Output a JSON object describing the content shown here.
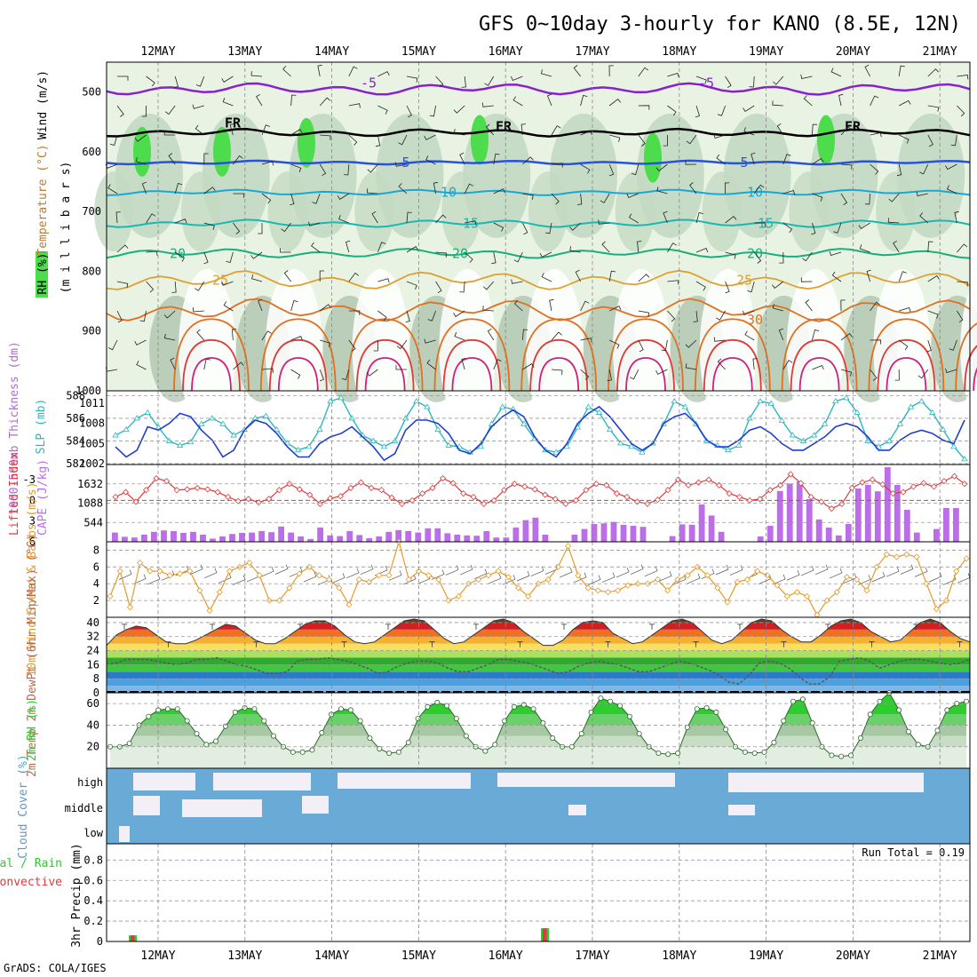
{
  "title": "GFS 0~10day 3-hourly for KANO (8.5E, 12N)",
  "credit": "GrADS: COLA/IGES",
  "colors": {
    "rh_light": "#e8f3e4",
    "rh_mid": "#c3d9c2",
    "rh_dark": "#9db59c",
    "rh_bright": "#4cdc4c",
    "freeze_line": "#000000",
    "temp_5": "#2a52d8",
    "temp_10": "#1aa7d6",
    "temp_15": "#1cb7b0",
    "temp_20": "#1aae7a",
    "temp_25": "#e0a030",
    "temp_30": "#e07020",
    "temp_m5": "#8a1fcf",
    "slp": "#1f3fd0",
    "thickness": "#2ab8c0",
    "lifted": "#e03a3a",
    "cape": "#bb6ee8",
    "wind": "#e79a2a",
    "rh2m": "#2ecc2e",
    "cloud": "#6aaad6",
    "cloud_clear": "#f2f0f6",
    "precip_total": "#2ecc2e",
    "precip_conv": "#e03a3a"
  },
  "chart_data": [
    {
      "id": "upper",
      "type": "heatmap",
      "ylabel_1": "RH (%)",
      "ylabel_2": "Temperature (°C)",
      "ylabel_3": "Wind (m/s)",
      "ylabel_4": "(m i l l i b a r s)",
      "ylim": [
        1000,
        450
      ],
      "yticks": [
        "500",
        "600",
        "700",
        "800",
        "900",
        "1000"
      ],
      "dates": [
        "12MAY",
        "13MAY",
        "14MAY",
        "15MAY",
        "16MAY",
        "17MAY",
        "18MAY",
        "19MAY",
        "20MAY",
        "21MAY"
      ],
      "contour_labels": [
        {
          "text": "-5",
          "series": "temp_m5"
        },
        {
          "text": "-5",
          "series": "temp_m5"
        },
        {
          "text": "FR",
          "series": "freeze_line"
        },
        {
          "text": "FR",
          "series": "freeze_line"
        },
        {
          "text": "FR",
          "series": "freeze_line"
        },
        {
          "text": "5",
          "series": "temp_5"
        },
        {
          "text": "5",
          "series": "temp_5"
        },
        {
          "text": "10",
          "series": "temp_10"
        },
        {
          "text": "10",
          "series": "temp_10"
        },
        {
          "text": "15",
          "series": "temp_15"
        },
        {
          "text": "15",
          "series": "temp_15"
        },
        {
          "text": "20",
          "series": "temp_20"
        },
        {
          "text": "20",
          "series": "temp_20"
        },
        {
          "text": "20",
          "series": "temp_20"
        },
        {
          "text": "25",
          "series": "temp_25"
        },
        {
          "text": "25",
          "series": "temp_25"
        },
        {
          "text": "30",
          "series": "temp_30"
        }
      ],
      "isotherm_pressure": {
        "temp_m5": 495,
        "freeze_line": 568,
        "temp_5": 618,
        "temp_10": 668,
        "temp_15": 720,
        "temp_20": 770,
        "temp_25": 815,
        "temp_30": 865
      }
    },
    {
      "id": "slp_thickness",
      "type": "line",
      "ylabel_left": "1000-500mb Thickness (dm)",
      "ylabel_right": "SLP (mb)",
      "left_ticks": [
        "588",
        "586",
        "584",
        "582"
      ],
      "right_ticks": [
        "1011",
        "1008",
        "1005",
        "1002"
      ],
      "left_ylim": [
        582,
        588.5
      ],
      "right_ylim": [
        1002,
        1013
      ],
      "series": [
        {
          "key": "thickness",
          "values": [
            584.5,
            585.0,
            586.0,
            586.5,
            585.2,
            584.0,
            583.6,
            583.9,
            585.5,
            586.0,
            585.5,
            584.5,
            585.0,
            586.0,
            586.2,
            585.0,
            583.8,
            583.2,
            583.5,
            585.0,
            587.5,
            587.8,
            586.0,
            584.5,
            584.0,
            583.5,
            584.0,
            586.0,
            587.5,
            587.0,
            585.0,
            583.6,
            583.5,
            583.0,
            583.5,
            585.5,
            587.0,
            586.8,
            585.5,
            584.2,
            583.2,
            583.0,
            583.5,
            585.2,
            587.0,
            586.5,
            585.0,
            583.8,
            583.5,
            583.0,
            583.8,
            585.5,
            587.5,
            587.0,
            585.5,
            584.0,
            583.6,
            583.2,
            583.6,
            586.0,
            587.5,
            587.3,
            585.8,
            584.5,
            584.0,
            584.5,
            585.5,
            587.5,
            587.8,
            586.5,
            584.0,
            583.5,
            584.0,
            585.5,
            587.0,
            587.5,
            586.5,
            585.0,
            583.5,
            582.4
          ]
        },
        {
          "key": "slp",
          "values": [
            1004.5,
            1003.0,
            1004.0,
            1007.5,
            1007.0,
            1008.0,
            1009.5,
            1009.0,
            1007.0,
            1005.5,
            1003.0,
            1004.0,
            1007.0,
            1008.5,
            1008.0,
            1006.5,
            1004.5,
            1003.0,
            1003.0,
            1005.0,
            1006.0,
            1006.5,
            1007.5,
            1006.0,
            1004.5,
            1002.5,
            1003.5,
            1007.0,
            1008.5,
            1008.5,
            1008.0,
            1006.5,
            1004.0,
            1003.5,
            1005.0,
            1007.5,
            1009.0,
            1010.0,
            1009.0,
            1006.0,
            1004.0,
            1003.0,
            1005.0,
            1008.0,
            1009.5,
            1010.5,
            1009.0,
            1007.0,
            1005.0,
            1004.0,
            1005.0,
            1008.0,
            1009.0,
            1009.5,
            1008.0,
            1005.5,
            1004.5,
            1004.5,
            1005.5,
            1007.0,
            1007.5,
            1006.5,
            1005.0,
            1004.0,
            1004.0,
            1005.0,
            1006.0,
            1007.5,
            1008.0,
            1007.5,
            1006.0,
            1004.0,
            1004.0,
            1005.5,
            1006.5,
            1007.0,
            1006.5,
            1005.5,
            1005.0,
            1008.5
          ]
        }
      ]
    },
    {
      "id": "lifted_cape",
      "type": "bar",
      "ylabel_left": "Lifted Index",
      "ylabel_right": "CAPE (J/kg)",
      "left_ticks": [
        "-3",
        "0",
        "3",
        "6"
      ],
      "right_ticks": [
        "1632",
        "1088",
        "544"
      ],
      "left_ylim": [
        6,
        -5.2
      ],
      "right_ylim": [
        0,
        2176
      ],
      "series": [
        {
          "key": "lifted",
          "values": [
            -0.5,
            -1.2,
            0.2,
            -1.5,
            -3.2,
            -2.8,
            -1.5,
            -1.6,
            -1.8,
            -1.6,
            -1.2,
            -0.5,
            0.1,
            -0.2,
            0.3,
            -0.2,
            -1.5,
            -2.4,
            -1.6,
            -0.8,
            0.5,
            -0.3,
            -0.6,
            -1.8,
            -2.6,
            -1.8,
            -1.5,
            -0.4,
            0.5,
            0.0,
            -1.0,
            -1.8,
            -3.2,
            -2.5,
            -1.0,
            -0.5,
            0.5,
            0.0,
            -1.5,
            -2.4,
            -2.0,
            -1.6,
            -0.8,
            -0.2,
            0.5,
            0.0,
            -1.5,
            -2.4,
            -2.2,
            -1.0,
            -0.5,
            0.2,
            0.5,
            -0.1,
            -1.5,
            -3.0,
            -2.2,
            -2.6,
            -3.0,
            -2.2,
            -1.0,
            -0.5,
            0.0,
            -0.2,
            -1.5,
            -2.2,
            -3.8,
            -2.5,
            -0.5,
            0.2,
            1.2,
            0.5,
            -1.8,
            -2.6,
            -3.0,
            -2.3,
            -1.0,
            -1.2,
            -2.0,
            -2.5,
            -2.0,
            -2.8,
            -3.5,
            -2.4
          ]
        },
        {
          "key": "cape",
          "values": [
            260,
            140,
            120,
            200,
            280,
            320,
            300,
            250,
            280,
            200,
            90,
            150,
            220,
            250,
            260,
            300,
            270,
            430,
            260,
            150,
            80,
            400,
            180,
            160,
            300,
            190,
            100,
            150,
            280,
            330,
            300,
            260,
            380,
            380,
            240,
            200,
            180,
            170,
            300,
            120,
            120,
            400,
            610,
            680,
            200,
            0,
            0,
            200,
            360,
            500,
            520,
            560,
            480,
            450,
            420,
            0,
            0,
            160,
            490,
            480,
            1050,
            740,
            280,
            0,
            0,
            0,
            150,
            450,
            1430,
            1640,
            1700,
            1200,
            630,
            400,
            180,
            500,
            1500,
            1600,
            1420,
            2100,
            1600,
            900,
            260,
            0,
            360,
            950,
            950
          ]
        }
      ]
    },
    {
      "id": "wind10m",
      "type": "line",
      "ylabel": "10m Wind Speed & Barbs (m/s)",
      "ticks": [
        "8",
        "6",
        "4",
        "2"
      ],
      "ylim": [
        0,
        9
      ],
      "series": [
        {
          "key": "wind",
          "values": [
            2.5,
            5.5,
            1.2,
            6.5,
            5.5,
            5.5,
            5.0,
            5.2,
            5.5,
            3.2,
            0.8,
            3.0,
            5.5,
            6.0,
            6.5,
            5.0,
            2.0,
            2.0,
            3.5,
            5.2,
            6.0,
            5.0,
            4.5,
            3.5,
            1.5,
            4.5,
            4.2,
            5.0,
            5.0,
            9.0,
            4.5,
            5.5,
            5.0,
            4.5,
            2.0,
            2.5,
            4.0,
            4.5,
            5.0,
            5.5,
            4.8,
            3.5,
            2.5,
            4.0,
            4.5,
            6.0,
            8.5,
            5.0,
            3.5,
            3.2,
            3.0,
            3.2,
            3.8,
            4.0,
            4.0,
            4.5,
            3.2,
            4.5,
            5.0,
            6.0,
            5.0,
            3.5,
            1.8,
            4.2,
            4.5,
            5.5,
            5.0,
            3.8,
            2.5,
            3.0,
            2.5,
            0.3,
            2.0,
            3.0,
            4.8,
            4.5,
            3.2,
            6.0,
            7.5,
            7.2,
            7.5,
            7.2,
            4.0,
            1.0,
            2.0,
            5.5,
            7.0
          ]
        }
      ]
    },
    {
      "id": "temp2m",
      "type": "area",
      "ylabel": "2m Temp 2m DewPt (6hr Min/Max) (°C)",
      "ticks": [
        "40",
        "32",
        "24",
        "16",
        "8",
        "0"
      ],
      "ylim": [
        0,
        43
      ],
      "series": [
        {
          "key": "temp2m",
          "values": [
            27,
            33,
            36,
            38,
            37,
            33,
            29,
            28,
            28,
            30,
            33,
            36,
            39,
            38,
            34,
            30,
            28,
            28,
            31,
            35,
            39,
            41,
            41,
            38,
            33,
            29,
            28,
            29,
            33,
            37,
            41,
            42,
            41,
            36,
            31,
            28,
            29,
            33,
            37,
            41,
            42,
            40,
            35,
            31,
            27,
            27,
            30,
            36,
            40,
            41,
            40,
            34,
            31,
            28,
            29,
            33,
            37,
            41,
            42,
            40,
            35,
            30,
            28,
            30,
            35,
            40,
            42,
            41,
            36,
            32,
            29,
            29,
            33,
            38,
            41,
            42,
            40,
            35,
            32,
            29,
            30,
            35,
            40,
            42,
            40,
            35,
            31,
            29
          ]
        },
        {
          "key": "dewpt2m",
          "values": [
            16,
            17,
            19,
            19,
            19,
            18,
            17,
            16,
            17,
            19,
            19,
            20,
            18,
            16,
            15,
            13,
            11,
            11,
            12,
            18,
            19,
            19,
            20,
            19,
            18,
            16,
            14,
            11,
            12,
            15,
            17,
            18,
            18,
            17,
            14,
            12,
            12,
            14,
            16,
            19,
            19,
            18,
            17,
            15,
            13,
            11,
            12,
            15,
            17,
            18,
            17,
            16,
            14,
            12,
            12,
            14,
            16,
            18,
            17,
            15,
            13,
            10,
            6,
            5,
            10,
            17,
            18,
            17,
            14,
            9,
            5,
            5,
            9,
            18,
            19,
            20,
            18,
            14,
            16,
            18,
            19,
            19,
            18,
            17,
            16,
            17,
            19
          ]
        }
      ]
    },
    {
      "id": "rh2m",
      "type": "area",
      "ylabel": "2m RH (%)",
      "ticks": [
        "60",
        "40",
        "20"
      ],
      "ylim": [
        0,
        70
      ],
      "series": [
        {
          "key": "rh2m",
          "values": [
            20,
            20,
            23,
            40,
            48,
            54,
            55,
            55,
            44,
            32,
            22,
            25,
            39,
            52,
            56,
            55,
            44,
            30,
            20,
            15,
            15,
            17,
            33,
            50,
            55,
            54,
            44,
            28,
            18,
            14,
            15,
            24,
            46,
            57,
            61,
            58,
            46,
            30,
            20,
            16,
            22,
            44,
            57,
            59,
            55,
            42,
            28,
            20,
            20,
            32,
            52,
            65,
            62,
            58,
            48,
            32,
            20,
            14,
            13,
            14,
            38,
            55,
            56,
            52,
            36,
            20,
            15,
            14,
            15,
            24,
            44,
            62,
            64,
            42,
            20,
            12,
            11,
            12,
            28,
            50,
            62,
            70,
            54,
            34,
            22,
            20,
            35,
            54,
            60,
            62
          ]
        }
      ]
    },
    {
      "id": "cloud",
      "type": "heatmap",
      "ylabel": "Cloud Cover (%)",
      "rows": [
        "high",
        "middle",
        "low"
      ]
    },
    {
      "id": "precip",
      "type": "bar",
      "ylabel_1": "Total / Rain",
      "ylabel_2": "Convective",
      "ylabel_3": "3hr Precip (mm)",
      "ticks": [
        "0.8",
        "0.6",
        "0.4",
        "0.2",
        "0"
      ],
      "ylim": [
        0,
        0.96
      ],
      "annotation": "Run Total = 0.19",
      "series": [
        {
          "key": "total",
          "values": [
            0,
            0.06,
            0,
            0,
            0,
            0,
            0,
            0,
            0,
            0,
            0,
            0,
            0,
            0,
            0,
            0,
            0,
            0,
            0,
            0,
            0,
            0,
            0,
            0,
            0,
            0,
            0,
            0,
            0,
            0,
            0,
            0,
            0,
            0,
            0,
            0,
            0,
            0,
            0,
            0,
            0,
            0.13
          ]
        },
        {
          "key": "convective",
          "values": [
            0,
            0.06,
            0,
            0,
            0,
            0,
            0,
            0,
            0,
            0,
            0,
            0,
            0,
            0,
            0,
            0,
            0,
            0,
            0,
            0,
            0,
            0,
            0,
            0,
            0,
            0,
            0,
            0,
            0,
            0,
            0,
            0,
            0,
            0,
            0,
            0,
            0,
            0,
            0,
            0,
            0,
            0.13
          ]
        }
      ]
    }
  ]
}
